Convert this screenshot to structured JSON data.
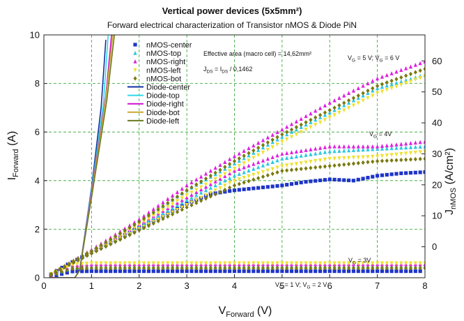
{
  "chart_data": {
    "type": "scatter",
    "title": "Vertical power devices (5x5mm²)",
    "subtitle": "Forward electrical characterization of Transistor nMOS & Diode PiN",
    "xlabel": {
      "main": "V",
      "sub": "Forward",
      "unit": " (V)"
    },
    "ylabel": {
      "main": "I",
      "sub": "Forward",
      "unit": " (A)"
    },
    "y2label": {
      "main": "J",
      "sub": "nMOS",
      "unit": " (A/cm²)"
    },
    "xlim": [
      0,
      8
    ],
    "ylim": [
      0,
      10
    ],
    "y2lim": [
      -10,
      68.4
    ],
    "xticks": [
      "0",
      "1",
      "2",
      "3",
      "4",
      "5",
      "6",
      "7",
      "8"
    ],
    "yticks": [
      "0",
      "2",
      "4",
      "6",
      "8",
      "10"
    ],
    "y2ticks": [
      "0",
      "10",
      "20",
      "30",
      "40",
      "50",
      "60"
    ],
    "grid": true,
    "legend_position": "top-left-center",
    "annotations": {
      "area": "Effective area (macro cell) = 14,62mm²",
      "jds": {
        "a": "J",
        "a_sub": "DS",
        "b": " = I",
        "b_sub": "DS",
        "c": " / 0,1462"
      },
      "vg56": {
        "a": "V",
        "a_sub": "G",
        "b": " = 5 V; V",
        "b_sub": "G",
        "c": " = 6 V"
      },
      "vg4": {
        "a": "V",
        "a_sub": "G",
        "b": " = 4V"
      },
      "vg3": {
        "a": "V",
        "a_sub": "G",
        "b": " = 3V"
      },
      "vg12": {
        "a": "V",
        "a_sub": "G",
        "b": " = 1 V; V",
        "b_sub": "G",
        "c": " = 2 V"
      }
    },
    "series": [
      {
        "name": "nMOS-center",
        "kind": "scatter",
        "marker": "square",
        "color": "#1f35c8",
        "curves": [
          {
            "gate": "3V",
            "x": [
              0.15,
              0.6,
              1.0,
              2.0,
              3.0,
              4.0,
              5.0,
              6.0,
              7.0,
              7.9
            ],
            "y": [
              0.05,
              0.26,
              0.27,
              0.27,
              0.27,
              0.27,
              0.27,
              0.27,
              0.27,
              0.27
            ]
          },
          {
            "gate": "5-6V",
            "x": [
              0.15,
              0.5,
              1.0,
              1.5,
              2.0,
              2.5,
              3.0,
              3.5,
              4.0,
              4.5,
              5.0,
              5.5,
              6.0,
              6.5,
              7.0,
              7.5,
              8.0
            ],
            "y": [
              0.15,
              0.55,
              1.05,
              1.55,
              2.05,
              2.55,
              3.05,
              3.45,
              3.6,
              3.7,
              3.8,
              3.95,
              4.05,
              4.0,
              4.2,
              4.3,
              4.35
            ]
          }
        ]
      },
      {
        "name": "nMOS-top",
        "kind": "scatter",
        "marker": "triangle",
        "color": "#2ec7e0",
        "curves": [
          {
            "gate": "3V",
            "x": [
              0.15,
              0.6,
              1.0,
              2.0,
              4.0,
              6.0,
              8.0
            ],
            "y": [
              0.1,
              0.42,
              0.45,
              0.45,
              0.45,
              0.45,
              0.45
            ]
          },
          {
            "gate": "4V",
            "x": [
              0.15,
              1.0,
              2.0,
              3.0,
              4.0,
              5.0,
              6.0,
              7.0,
              8.0
            ],
            "y": [
              0.15,
              1.05,
              2.1,
              3.2,
              4.2,
              4.9,
              5.2,
              5.3,
              5.4
            ]
          },
          {
            "gate": "5-6V",
            "x": [
              0.15,
              1.0,
              2.0,
              3.0,
              4.0,
              5.0,
              6.0,
              7.0,
              8.0
            ],
            "y": [
              0.15,
              1.1,
              2.3,
              3.6,
              4.7,
              5.8,
              6.8,
              7.8,
              8.35
            ]
          }
        ]
      },
      {
        "name": "nMOS-right",
        "kind": "scatter",
        "marker": "triangle",
        "color": "#e020e0",
        "curves": [
          {
            "gate": "3V",
            "x": [
              0.15,
              0.6,
              1.0,
              2.0,
              4.0,
              6.0,
              8.0
            ],
            "y": [
              0.1,
              0.5,
              0.55,
              0.55,
              0.55,
              0.55,
              0.55
            ]
          },
          {
            "gate": "4V",
            "x": [
              0.15,
              1.0,
              2.0,
              3.0,
              4.0,
              5.0,
              6.0,
              7.0,
              8.0
            ],
            "y": [
              0.15,
              1.1,
              2.2,
              3.3,
              4.4,
              5.1,
              5.4,
              5.4,
              5.6
            ]
          },
          {
            "gate": "5-6V",
            "x": [
              0.15,
              1.0,
              2.0,
              3.0,
              4.0,
              5.0,
              6.0,
              7.0,
              8.0
            ],
            "y": [
              0.15,
              1.15,
              2.4,
              3.8,
              5.0,
              6.1,
              7.2,
              8.2,
              8.9
            ]
          }
        ]
      },
      {
        "name": "nMOS-left",
        "kind": "scatter",
        "marker": "triangle-down",
        "color": "#f0e030",
        "curves": [
          {
            "gate": "3V",
            "x": [
              0.15,
              0.6,
              1.0,
              2.0,
              4.0,
              6.0,
              8.0
            ],
            "y": [
              0.1,
              0.55,
              0.6,
              0.6,
              0.6,
              0.6,
              0.6
            ]
          },
          {
            "gate": "4V",
            "x": [
              0.15,
              1.0,
              2.0,
              3.0,
              4.0,
              5.0,
              6.0,
              7.0,
              8.0
            ],
            "y": [
              0.15,
              1.0,
              2.0,
              3.0,
              4.0,
              4.6,
              4.9,
              5.0,
              5.2
            ]
          },
          {
            "gate": "5-6V",
            "x": [
              0.15,
              1.0,
              2.0,
              3.0,
              4.0,
              5.0,
              6.0,
              7.0,
              8.0
            ],
            "y": [
              0.15,
              1.05,
              2.2,
              3.4,
              4.5,
              5.6,
              6.6,
              7.6,
              8.3
            ]
          }
        ]
      },
      {
        "name": "nMOS-bot",
        "kind": "scatter",
        "marker": "diamond",
        "color": "#7a7a10",
        "curves": [
          {
            "gate": "3V",
            "x": [
              0.15,
              0.6,
              1.0,
              2.0,
              4.0,
              6.0,
              8.0
            ],
            "y": [
              0.1,
              0.38,
              0.4,
              0.4,
              0.4,
              0.4,
              0.4
            ]
          },
          {
            "gate": "4V",
            "x": [
              0.15,
              1.0,
              2.0,
              3.0,
              4.0,
              5.0,
              6.0,
              7.0,
              8.0
            ],
            "y": [
              0.15,
              1.0,
              1.95,
              2.9,
              3.8,
              4.4,
              4.6,
              4.8,
              4.9
            ]
          },
          {
            "gate": "5-6V",
            "x": [
              0.15,
              1.0,
              2.0,
              3.0,
              4.0,
              5.0,
              6.0,
              7.0,
              8.0
            ],
            "y": [
              0.15,
              1.1,
              2.3,
              3.6,
              4.8,
              5.9,
              6.9,
              7.9,
              8.6
            ]
          }
        ]
      },
      {
        "name": "Diode-center",
        "kind": "line",
        "color": "#1030a0",
        "x": [
          0.15,
          0.65,
          0.75,
          1.0,
          1.2,
          1.3
        ],
        "y": [
          0.0,
          0.0,
          0.3,
          3.7,
          7.0,
          9.8
        ]
      },
      {
        "name": "Diode-top",
        "kind": "line",
        "color": "#30d8e8",
        "x": [
          0.15,
          0.65,
          0.75,
          1.0,
          1.25,
          1.35
        ],
        "y": [
          0.0,
          0.0,
          0.3,
          3.6,
          7.2,
          10.0
        ]
      },
      {
        "name": "Diode-right",
        "kind": "line",
        "color": "#d010d0",
        "x": [
          0.15,
          0.65,
          0.75,
          1.0,
          1.3,
          1.42
        ],
        "y": [
          0.0,
          0.0,
          0.3,
          3.5,
          7.5,
          10.0
        ]
      },
      {
        "name": "Diode-bot",
        "kind": "line",
        "color": "#c8a830",
        "x": [
          0.15,
          0.65,
          0.75,
          1.0,
          1.3,
          1.45
        ],
        "y": [
          0.0,
          0.0,
          0.3,
          3.4,
          7.4,
          10.0
        ]
      },
      {
        "name": "Diode-left",
        "kind": "line",
        "color": "#6a7a20",
        "x": [
          0.15,
          0.65,
          0.75,
          1.0,
          1.32,
          1.48
        ],
        "y": [
          0.0,
          0.0,
          0.3,
          3.3,
          7.3,
          10.0
        ]
      }
    ]
  }
}
